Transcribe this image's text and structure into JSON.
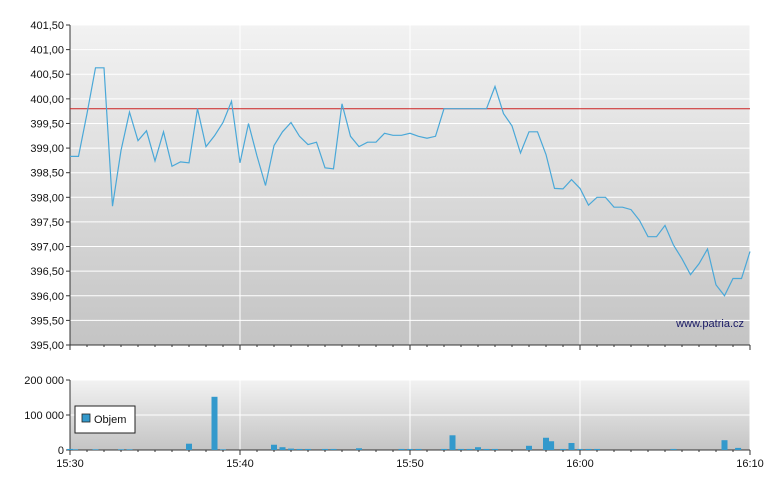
{
  "watermark": "www.patria.cz",
  "legend": {
    "label": "Objem"
  },
  "colors": {
    "line": "#4aa8d8",
    "reference": "#cc2222",
    "bar": "#3399cc",
    "grid": "#ffffff",
    "bg_top": "#f2f2f2",
    "bg_bottom": "#c4c4c4"
  },
  "chart_data": [
    {
      "type": "line",
      "x_ticks": [
        "15:30",
        "15:40",
        "15:50",
        "16:00",
        "16:10"
      ],
      "y_ticks": [
        "395,00",
        "395,50",
        "396,00",
        "396,50",
        "397,00",
        "397,50",
        "398,00",
        "398,50",
        "399,00",
        "399,50",
        "400,00",
        "400,50",
        "401,00",
        "401,50"
      ],
      "ylim": [
        395,
        401.5
      ],
      "x_range_minutes": [
        0,
        40
      ],
      "reference_line": 399.8,
      "grid": true,
      "series": [
        {
          "values": [
            [
              0,
              398.83
            ],
            [
              0.5,
              398.83
            ],
            [
              1,
              399.7
            ],
            [
              1.5,
              400.63
            ],
            [
              2,
              400.63
            ],
            [
              2.5,
              397.82
            ],
            [
              3,
              398.95
            ],
            [
              3.5,
              399.73
            ],
            [
              4,
              399.15
            ],
            [
              4.5,
              399.35
            ],
            [
              5,
              398.74
            ],
            [
              5.5,
              399.33
            ],
            [
              6,
              398.63
            ],
            [
              6.5,
              398.72
            ],
            [
              7,
              398.7
            ],
            [
              7.5,
              399.8
            ],
            [
              8,
              399.03
            ],
            [
              8.5,
              399.25
            ],
            [
              9,
              399.52
            ],
            [
              9.5,
              399.95
            ],
            [
              10,
              398.7
            ],
            [
              10.5,
              399.5
            ],
            [
              11,
              398.84
            ],
            [
              11.5,
              398.24
            ],
            [
              12,
              399.05
            ],
            [
              12.5,
              399.33
            ],
            [
              13,
              399.52
            ],
            [
              13.5,
              399.24
            ],
            [
              14,
              399.07
            ],
            [
              14.5,
              399.12
            ],
            [
              15,
              398.6
            ],
            [
              15.5,
              398.58
            ],
            [
              16,
              399.9
            ],
            [
              16.5,
              399.24
            ],
            [
              17,
              399.03
            ],
            [
              17.5,
              399.12
            ],
            [
              18,
              399.12
            ],
            [
              18.5,
              399.3
            ],
            [
              19,
              399.26
            ],
            [
              19.5,
              399.26
            ],
            [
              20,
              399.3
            ],
            [
              20.5,
              399.24
            ],
            [
              21,
              399.2
            ],
            [
              21.5,
              399.24
            ],
            [
              22,
              399.8
            ],
            [
              22.5,
              399.8
            ],
            [
              23,
              399.8
            ],
            [
              23.5,
              399.8
            ],
            [
              24,
              399.8
            ],
            [
              24.5,
              399.8
            ],
            [
              25,
              400.25
            ],
            [
              25.5,
              399.7
            ],
            [
              26,
              399.45
            ],
            [
              26.5,
              398.9
            ],
            [
              27,
              399.33
            ],
            [
              27.5,
              399.33
            ],
            [
              28,
              398.87
            ],
            [
              28.5,
              398.18
            ],
            [
              29,
              398.17
            ],
            [
              29.5,
              398.36
            ],
            [
              30,
              398.18
            ],
            [
              30.5,
              397.84
            ],
            [
              31,
              398.0
            ],
            [
              31.5,
              398.0
            ],
            [
              32,
              397.8
            ],
            [
              32.5,
              397.8
            ],
            [
              33,
              397.75
            ],
            [
              33.5,
              397.53
            ],
            [
              34,
              397.2
            ],
            [
              34.5,
              397.2
            ],
            [
              35,
              397.43
            ],
            [
              35.5,
              397.03
            ],
            [
              36,
              396.75
            ],
            [
              36.5,
              396.43
            ],
            [
              37,
              396.65
            ],
            [
              37.5,
              396.95
            ],
            [
              38,
              396.22
            ],
            [
              38.5,
              396.0
            ],
            [
              39,
              396.35
            ],
            [
              39.5,
              396.35
            ],
            [
              40,
              396.9
            ]
          ]
        }
      ]
    },
    {
      "type": "bar",
      "x_ticks": [
        "15:30",
        "15:40",
        "15:50",
        "16:00",
        "16:10"
      ],
      "y_ticks": [
        "0",
        "100 000",
        "200 000"
      ],
      "ylim": [
        0,
        200000
      ],
      "x_range_minutes": [
        0,
        40
      ],
      "series": [
        {
          "name": "Objem",
          "values": [
            [
              0,
              3000
            ],
            [
              0.3,
              2000
            ],
            [
              1.5,
              2000
            ],
            [
              3,
              2000
            ],
            [
              3.5,
              2000
            ],
            [
              7,
              18000
            ],
            [
              8.5,
              152000
            ],
            [
              9,
              2000
            ],
            [
              12,
              15000
            ],
            [
              12.5,
              8000
            ],
            [
              13,
              4000
            ],
            [
              13.5,
              3000
            ],
            [
              14,
              3000
            ],
            [
              15,
              3000
            ],
            [
              15.5,
              3000
            ],
            [
              17,
              5000
            ],
            [
              19.5,
              3000
            ],
            [
              20,
              3000
            ],
            [
              20.5,
              3000
            ],
            [
              22,
              3000
            ],
            [
              22.5,
              42000
            ],
            [
              23,
              3000
            ],
            [
              23.5,
              3000
            ],
            [
              24,
              8000
            ],
            [
              24.5,
              3000
            ],
            [
              25,
              3000
            ],
            [
              27,
              12000
            ],
            [
              28,
              35000
            ],
            [
              28.3,
              25000
            ],
            [
              29,
              3000
            ],
            [
              29.5,
              20000
            ],
            [
              30,
              3000
            ],
            [
              30.5,
              3000
            ],
            [
              31,
              3000
            ],
            [
              35.5,
              3000
            ],
            [
              38.5,
              28000
            ],
            [
              39.3,
              6000
            ]
          ]
        }
      ]
    }
  ]
}
